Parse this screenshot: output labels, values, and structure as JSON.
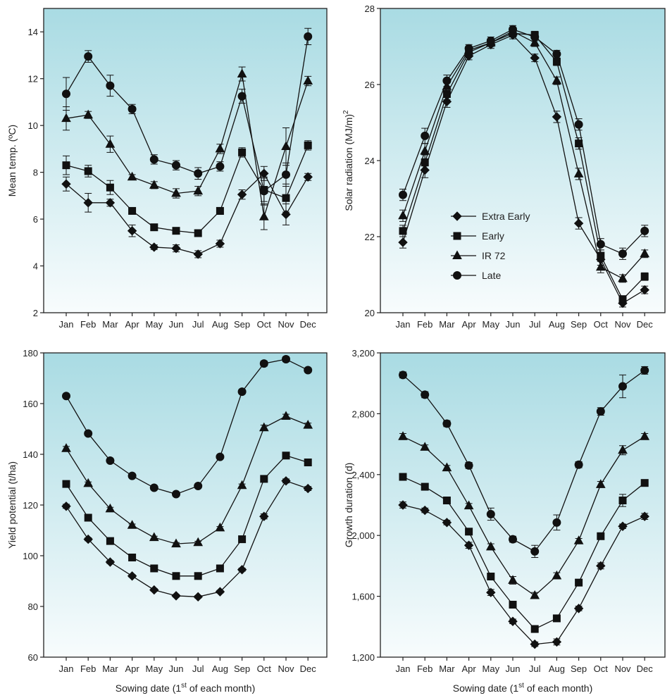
{
  "months": [
    "Jan",
    "Feb",
    "Mar",
    "Apr",
    "May",
    "Jun",
    "Jul",
    "Aug",
    "Sep",
    "Oct",
    "Nov",
    "Dec"
  ],
  "series_names": [
    "Extra Early",
    "Early",
    "IR 72",
    "Late"
  ],
  "chart_data": [
    {
      "type": "line",
      "ylabel": "Mean temp. (ºC)",
      "xlabel": "",
      "ylim": [
        2,
        15
      ],
      "yticks": [
        "2",
        "4",
        "6",
        "8",
        "10",
        "12",
        "14"
      ],
      "ytick_values": [
        2,
        4,
        6,
        8,
        10,
        12,
        14
      ],
      "categories": [
        "Jan",
        "Feb",
        "Mar",
        "Apr",
        "May",
        "Jun",
        "Jul",
        "Aug",
        "Sep",
        "Oct",
        "Nov",
        "Dec"
      ],
      "legend": false,
      "series": [
        {
          "name": "Extra Early",
          "marker": "diamond",
          "values": [
            7.5,
            6.7,
            6.7,
            5.5,
            4.8,
            4.75,
            4.5,
            4.95,
            7.05,
            7.95,
            6.2,
            7.8
          ],
          "err": [
            0.3,
            0.4,
            0.15,
            0.25,
            0.1,
            0.15,
            0.15,
            0.15,
            0.2,
            0.3,
            0.45,
            0.15
          ]
        },
        {
          "name": "Early",
          "marker": "square",
          "values": [
            8.3,
            8.05,
            7.35,
            6.35,
            5.65,
            5.5,
            5.4,
            6.35,
            8.85,
            7.25,
            6.9,
            9.15
          ],
          "err": [
            0.4,
            0.25,
            0.3,
            0.1,
            0.1,
            0.1,
            0.1,
            0.15,
            0.2,
            0.5,
            0.6,
            0.2
          ]
        },
        {
          "name": "IR 72",
          "marker": "triangle",
          "values": [
            10.3,
            10.45,
            9.2,
            7.8,
            7.45,
            7.1,
            7.2,
            9.0,
            12.2,
            6.1,
            9.1,
            11.9
          ],
          "err": [
            0.5,
            0.15,
            0.35,
            0.1,
            0.15,
            0.2,
            0.2,
            0.2,
            0.3,
            0.55,
            0.8,
            0.2
          ]
        },
        {
          "name": "Late",
          "marker": "circle",
          "values": [
            11.35,
            12.95,
            11.7,
            10.7,
            8.55,
            8.3,
            7.95,
            8.25,
            11.25,
            7.2,
            7.9,
            13.8
          ],
          "err": [
            0.7,
            0.25,
            0.45,
            0.2,
            0.2,
            0.2,
            0.25,
            0.2,
            0.3,
            0.6,
            0.5,
            0.35
          ]
        }
      ]
    },
    {
      "type": "line",
      "ylabel": "Solar radiation (MJ/m)",
      "ylabel_sup": "2",
      "xlabel": "",
      "ylim": [
        20,
        28
      ],
      "yticks": [
        "20",
        "22",
        "24",
        "26",
        "28"
      ],
      "ytick_values": [
        20,
        22,
        24,
        26,
        28
      ],
      "categories": [
        "Jan",
        "Feb",
        "Mar",
        "Apr",
        "May",
        "Jun",
        "Jul",
        "Aug",
        "Sep",
        "Oct",
        "Nov",
        "Dec"
      ],
      "legend": true,
      "legend_position": "lower-left",
      "series": [
        {
          "name": "Extra Early",
          "marker": "diamond",
          "values": [
            21.85,
            23.75,
            25.55,
            26.75,
            27.05,
            27.3,
            26.7,
            25.15,
            22.35,
            21.4,
            20.25,
            20.6
          ],
          "err": [
            0.15,
            0.2,
            0.15,
            0.1,
            0.1,
            0.1,
            0.1,
            0.15,
            0.15,
            0.15,
            0.1,
            0.1
          ]
        },
        {
          "name": "Early",
          "marker": "square",
          "values": [
            22.15,
            23.95,
            25.75,
            26.85,
            27.1,
            27.35,
            27.3,
            26.6,
            24.45,
            21.5,
            20.35,
            20.95
          ],
          "err": [
            0.15,
            0.2,
            0.15,
            0.1,
            0.1,
            0.1,
            0.1,
            0.1,
            0.15,
            0.15,
            0.1,
            0.1
          ]
        },
        {
          "name": "IR 72",
          "marker": "triangle",
          "values": [
            22.55,
            24.25,
            25.95,
            26.9,
            27.1,
            27.4,
            27.1,
            26.1,
            23.65,
            21.2,
            20.9,
            21.55
          ],
          "err": [
            0.15,
            0.2,
            0.15,
            0.1,
            0.1,
            0.1,
            0.1,
            0.1,
            0.15,
            0.15,
            0.1,
            0.1
          ]
        },
        {
          "name": "Late",
          "marker": "circle",
          "values": [
            23.1,
            24.65,
            26.1,
            26.95,
            27.15,
            27.45,
            27.25,
            26.8,
            24.95,
            21.8,
            21.55,
            22.15
          ],
          "err": [
            0.15,
            0.2,
            0.15,
            0.1,
            0.1,
            0.1,
            0.1,
            0.1,
            0.15,
            0.15,
            0.15,
            0.15
          ]
        }
      ]
    },
    {
      "type": "line",
      "ylabel": "Yield potential (t/ha)",
      "xlabel": "Sowing date (1",
      "xlabel_sup": "st",
      "xlabel_tail": " of each month)",
      "ylim": [
        60,
        180
      ],
      "yticks": [
        "60",
        "80",
        "100",
        "120",
        "140",
        "160",
        "180"
      ],
      "ytick_values": [
        60,
        80,
        100,
        120,
        140,
        160,
        180
      ],
      "categories": [
        "Jan",
        "Feb",
        "Mar",
        "Apr",
        "May",
        "Jun",
        "Jul",
        "Aug",
        "Sep",
        "Oct",
        "Nov",
        "Dec"
      ],
      "legend": false,
      "series": [
        {
          "name": "Extra Early",
          "marker": "diamond",
          "values": [
            119.5,
            106.5,
            97.5,
            92,
            86.5,
            84.2,
            83.8,
            85.8,
            94.5,
            115.5,
            129.5,
            126.5
          ],
          "err": [
            0.8,
            0.6,
            0.6,
            0.5,
            0.5,
            0.5,
            0.5,
            0.5,
            0.6,
            1.0,
            0.8,
            0.8
          ]
        },
        {
          "name": "Early",
          "marker": "square",
          "values": [
            128.3,
            115,
            105.8,
            99.3,
            95,
            92,
            92,
            95,
            106.5,
            130.3,
            139.5,
            136.8
          ],
          "err": [
            0.8,
            0.6,
            0.6,
            0.5,
            0.5,
            0.5,
            0.5,
            0.5,
            0.6,
            1.0,
            0.8,
            0.8
          ]
        },
        {
          "name": "IR 72",
          "marker": "triangle",
          "values": [
            142.3,
            128.5,
            118.5,
            112,
            107.2,
            104.7,
            105.2,
            111,
            127.7,
            150.5,
            155,
            151.5
          ],
          "err": [
            0.8,
            0.6,
            0.6,
            0.5,
            0.5,
            0.5,
            0.5,
            0.5,
            0.6,
            1.0,
            0.8,
            0.8
          ]
        },
        {
          "name": "Late",
          "marker": "circle",
          "values": [
            163,
            148.2,
            137.5,
            131.5,
            126.8,
            124.3,
            127.5,
            139,
            164.7,
            175.8,
            177.5,
            173.2
          ],
          "err": [
            0.8,
            0.6,
            0.6,
            0.5,
            0.5,
            0.5,
            0.5,
            0.6,
            0.8,
            1.0,
            1.0,
            0.8
          ]
        }
      ]
    },
    {
      "type": "line",
      "ylabel": "Growth duration (d)",
      "xlabel": "Sowing date (1",
      "xlabel_sup": "st",
      "xlabel_tail": " of each month)",
      "ylim": [
        1200,
        3200
      ],
      "yticks": [
        "1,200",
        "1,600",
        "2,000",
        "2,400",
        "2,800",
        "3,200"
      ],
      "ytick_values": [
        1200,
        1600,
        2000,
        2400,
        2800,
        3200
      ],
      "categories": [
        "Jan",
        "Feb",
        "Mar",
        "Apr",
        "May",
        "Jun",
        "Jul",
        "Aug",
        "Sep",
        "Oct",
        "Nov",
        "Dec"
      ],
      "legend": false,
      "series": [
        {
          "name": "Extra Early",
          "marker": "diamond",
          "values": [
            2200,
            2165,
            2085,
            1935,
            1625,
            1435,
            1285,
            1300,
            1520,
            1800,
            2060,
            2125
          ],
          "err": [
            20,
            15,
            15,
            20,
            20,
            15,
            15,
            20,
            15,
            20,
            15,
            20
          ]
        },
        {
          "name": "Early",
          "marker": "square",
          "values": [
            2385,
            2320,
            2230,
            2025,
            1730,
            1545,
            1385,
            1455,
            1690,
            1995,
            2230,
            2345
          ],
          "err": [
            15,
            15,
            15,
            15,
            20,
            15,
            15,
            20,
            15,
            15,
            40,
            20
          ]
        },
        {
          "name": "IR 72",
          "marker": "triangle",
          "values": [
            2650,
            2580,
            2445,
            2195,
            1925,
            1705,
            1605,
            1735,
            1965,
            2335,
            2560,
            2650
          ],
          "err": [
            20,
            15,
            15,
            15,
            20,
            25,
            20,
            20,
            15,
            20,
            30,
            20
          ]
        },
        {
          "name": "Late",
          "marker": "circle",
          "values": [
            3055,
            2925,
            2735,
            2460,
            2140,
            1975,
            1895,
            2085,
            2465,
            2815,
            2980,
            3085
          ],
          "err": [
            20,
            20,
            20,
            20,
            40,
            20,
            40,
            50,
            20,
            25,
            75,
            25
          ]
        }
      ]
    }
  ]
}
